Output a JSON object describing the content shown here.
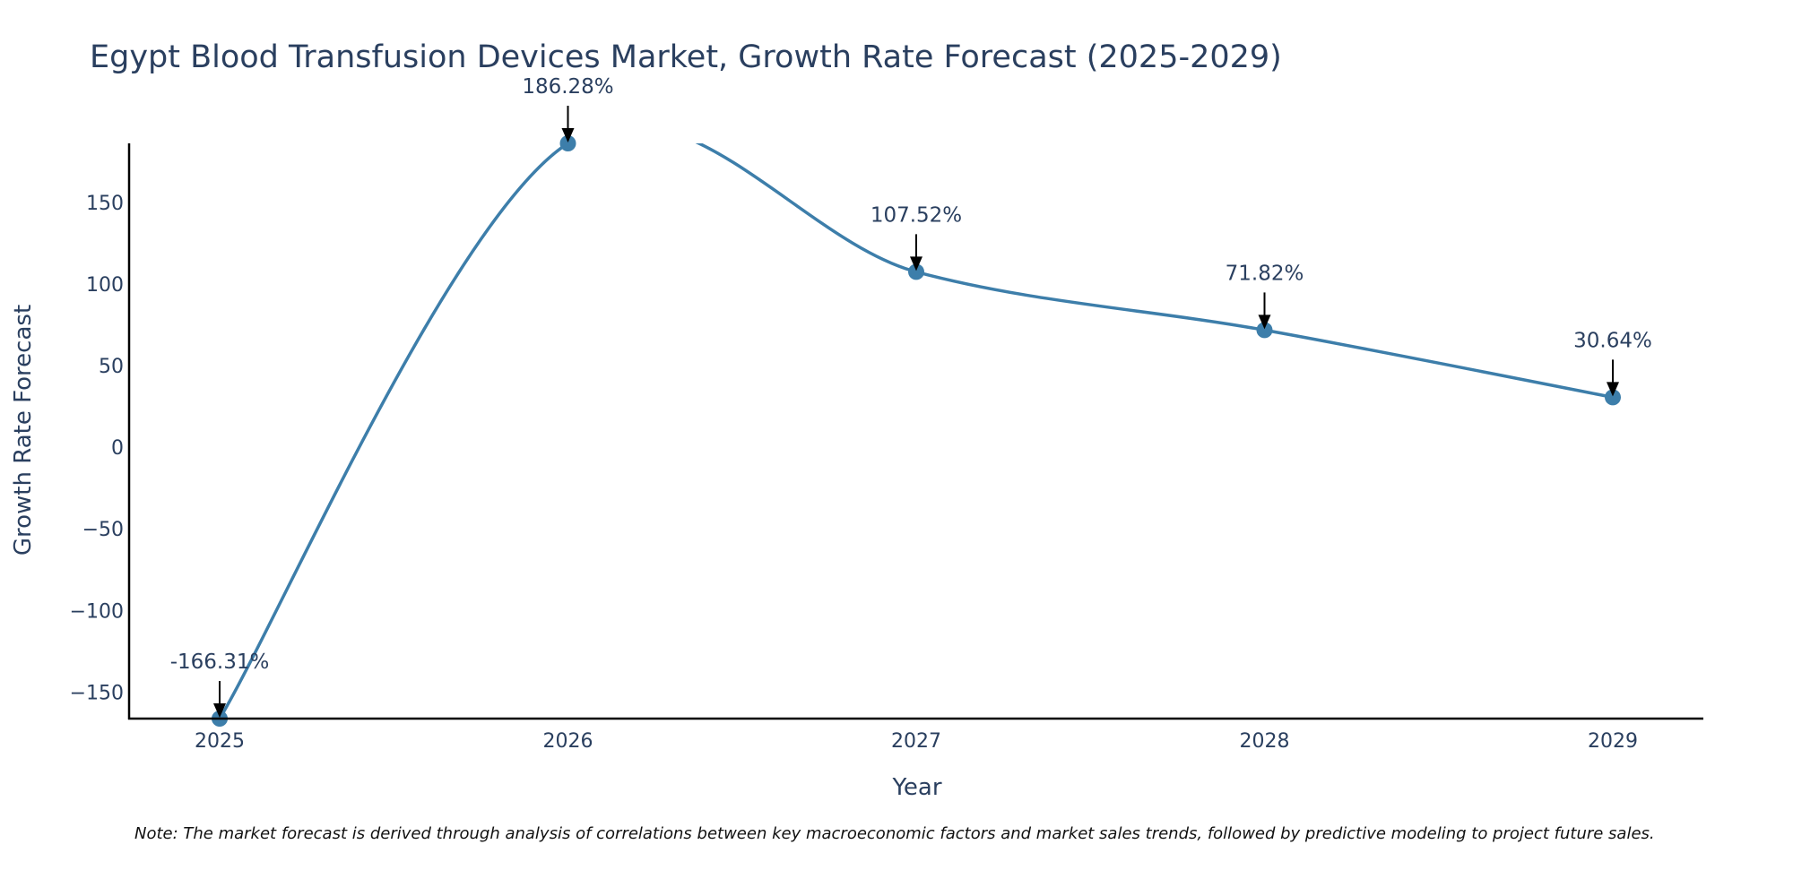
{
  "chart_data": {
    "type": "line",
    "title": "Egypt Blood Transfusion Devices Market, Growth Rate Forecast (2025-2029)",
    "xlabel": "Year",
    "ylabel": "Growth Rate Forecast",
    "categories": [
      "2025",
      "2026",
      "2027",
      "2028",
      "2029"
    ],
    "values": [
      -166.31,
      186.28,
      107.52,
      71.82,
      30.64
    ],
    "annotations": [
      "-166.31%",
      "186.28%",
      "107.52%",
      "71.82%",
      "30.64%"
    ],
    "y_ticks": [
      -150,
      -100,
      -50,
      0,
      50,
      100,
      150
    ],
    "y_tick_labels": [
      "−150",
      "−100",
      "−50",
      "0",
      "50",
      "100",
      "150"
    ],
    "ylim": [
      -166.31,
      186.28
    ],
    "xlim": [
      2024.74,
      2029.26
    ],
    "grid": false,
    "line_color": "#3d7eaa"
  },
  "note": "Note: The market forecast is derived through analysis of correlations between key macroeconomic factors and market sales trends, followed by predictive modeling to project future sales."
}
